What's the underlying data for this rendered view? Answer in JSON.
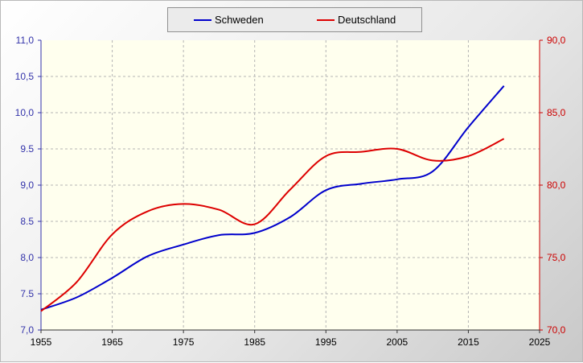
{
  "chart_data": {
    "type": "line",
    "title": "",
    "xlabel": "",
    "x_ticks": [
      "1955",
      "1965",
      "1975",
      "1985",
      "1995",
      "2005",
      "2015",
      "2025"
    ],
    "xlim": [
      1955,
      2025
    ],
    "grid": true,
    "legend_placement": "top-center",
    "y_left": {
      "ylim": [
        7.0,
        11.0
      ],
      "ticks": [
        "7,0",
        "7.5",
        "8,0",
        "8.5",
        "9,0",
        "9.5",
        "10,0",
        "10,5",
        "11,0"
      ],
      "color": "#3333aa"
    },
    "y_right": {
      "ylim": [
        70.0,
        90.0
      ],
      "ticks": [
        "70,0",
        "75,0",
        "80,0",
        "85,0",
        "90,0"
      ],
      "color": "#cc0000"
    },
    "series": [
      {
        "name": "Schweden",
        "axis": "left",
        "color": "#0000cc",
        "x": [
          1955,
          1960,
          1965,
          1970,
          1975,
          1980,
          1985,
          1990,
          1995,
          2000,
          2005,
          2010,
          2015,
          2020
        ],
        "values": [
          7.28,
          7.45,
          7.72,
          8.02,
          8.18,
          8.31,
          8.34,
          8.56,
          8.93,
          9.02,
          9.08,
          9.19,
          9.8,
          10.37
        ]
      },
      {
        "name": "Deutschland",
        "axis": "right",
        "color": "#dd0000",
        "x": [
          1955,
          1960,
          1965,
          1970,
          1975,
          1980,
          1985,
          1990,
          1995,
          2000,
          2005,
          2010,
          2015,
          2020
        ],
        "values": [
          71.3,
          73.3,
          76.6,
          78.2,
          78.7,
          78.3,
          77.3,
          79.7,
          82.0,
          82.3,
          82.5,
          81.7,
          82.0,
          83.2
        ]
      }
    ]
  },
  "colors": {
    "plot_background": "#ffffee",
    "grid": "#b4b4b4"
  }
}
